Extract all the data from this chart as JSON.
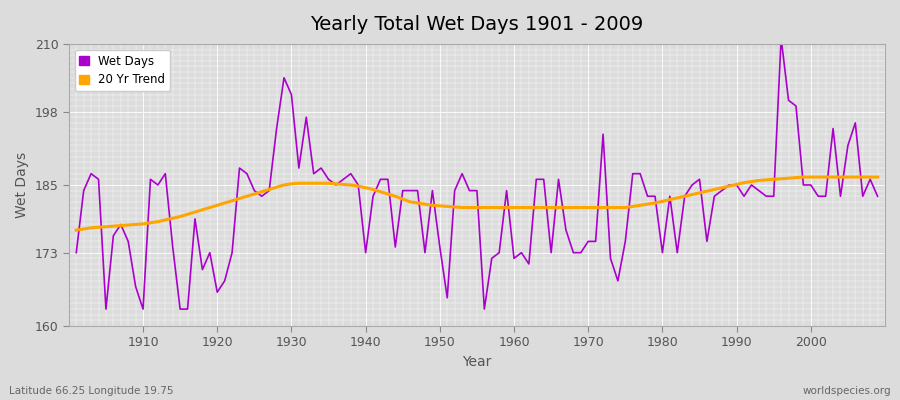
{
  "title": "Yearly Total Wet Days 1901 - 2009",
  "xlabel": "Year",
  "ylabel": "Wet Days",
  "subtitle_left": "Latitude 66.25 Longitude 19.75",
  "subtitle_right": "worldspecies.org",
  "legend_labels": [
    "Wet Days",
    "20 Yr Trend"
  ],
  "wet_days_color": "#AA00CC",
  "trend_color": "#FFA500",
  "background_color": "#DCDCDC",
  "grid_color": "#FFFFFF",
  "ylim": [
    160,
    210
  ],
  "yticks": [
    160,
    173,
    185,
    198,
    210
  ],
  "year_start": 1901,
  "year_end": 2009,
  "wet_days": [
    173,
    184,
    187,
    186,
    163,
    176,
    178,
    175,
    167,
    163,
    186,
    185,
    187,
    174,
    163,
    163,
    179,
    170,
    173,
    166,
    168,
    173,
    188,
    187,
    184,
    183,
    184,
    195,
    204,
    201,
    188,
    197,
    187,
    188,
    186,
    185,
    186,
    187,
    185,
    173,
    183,
    186,
    186,
    174,
    184,
    184,
    184,
    173,
    184,
    174,
    165,
    184,
    187,
    184,
    184,
    163,
    172,
    173,
    184,
    172,
    173,
    171,
    186,
    186,
    173,
    186,
    177,
    173,
    173,
    175,
    175,
    194,
    172,
    168,
    175,
    187,
    187,
    183,
    183,
    173,
    183,
    173,
    183,
    185,
    186,
    175,
    183,
    184,
    185,
    185,
    183,
    185,
    184,
    183,
    183,
    211,
    200,
    199,
    185,
    185,
    183,
    183,
    195,
    183,
    192,
    196,
    183,
    186,
    183
  ],
  "trend_values": [
    177.0,
    177.2,
    177.4,
    177.5,
    177.6,
    177.7,
    177.8,
    177.9,
    178.0,
    178.1,
    178.3,
    178.5,
    178.8,
    179.1,
    179.4,
    179.8,
    180.2,
    180.6,
    181.0,
    181.4,
    181.8,
    182.2,
    182.6,
    183.0,
    183.4,
    183.8,
    184.2,
    184.6,
    185.0,
    185.2,
    185.3,
    185.3,
    185.3,
    185.3,
    185.3,
    185.2,
    185.1,
    185.0,
    184.8,
    184.5,
    184.2,
    183.8,
    183.4,
    183.0,
    182.5,
    182.0,
    181.8,
    181.6,
    181.4,
    181.3,
    181.2,
    181.1,
    181.0,
    181.0,
    181.0,
    181.0,
    181.0,
    181.0,
    181.0,
    181.0,
    181.0,
    181.0,
    181.0,
    181.0,
    181.0,
    181.0,
    181.0,
    181.0,
    181.0,
    181.0,
    181.0,
    181.0,
    181.0,
    181.0,
    181.0,
    181.2,
    181.4,
    181.6,
    181.8,
    182.1,
    182.4,
    182.7,
    183.0,
    183.3,
    183.6,
    183.9,
    184.2,
    184.5,
    184.8,
    185.1,
    185.4,
    185.6,
    185.8,
    185.9,
    186.0,
    186.1,
    186.2,
    186.3,
    186.4,
    186.4,
    186.4,
    186.4,
    186.4,
    186.4,
    186.4,
    186.4,
    186.4,
    186.4,
    186.4
  ]
}
